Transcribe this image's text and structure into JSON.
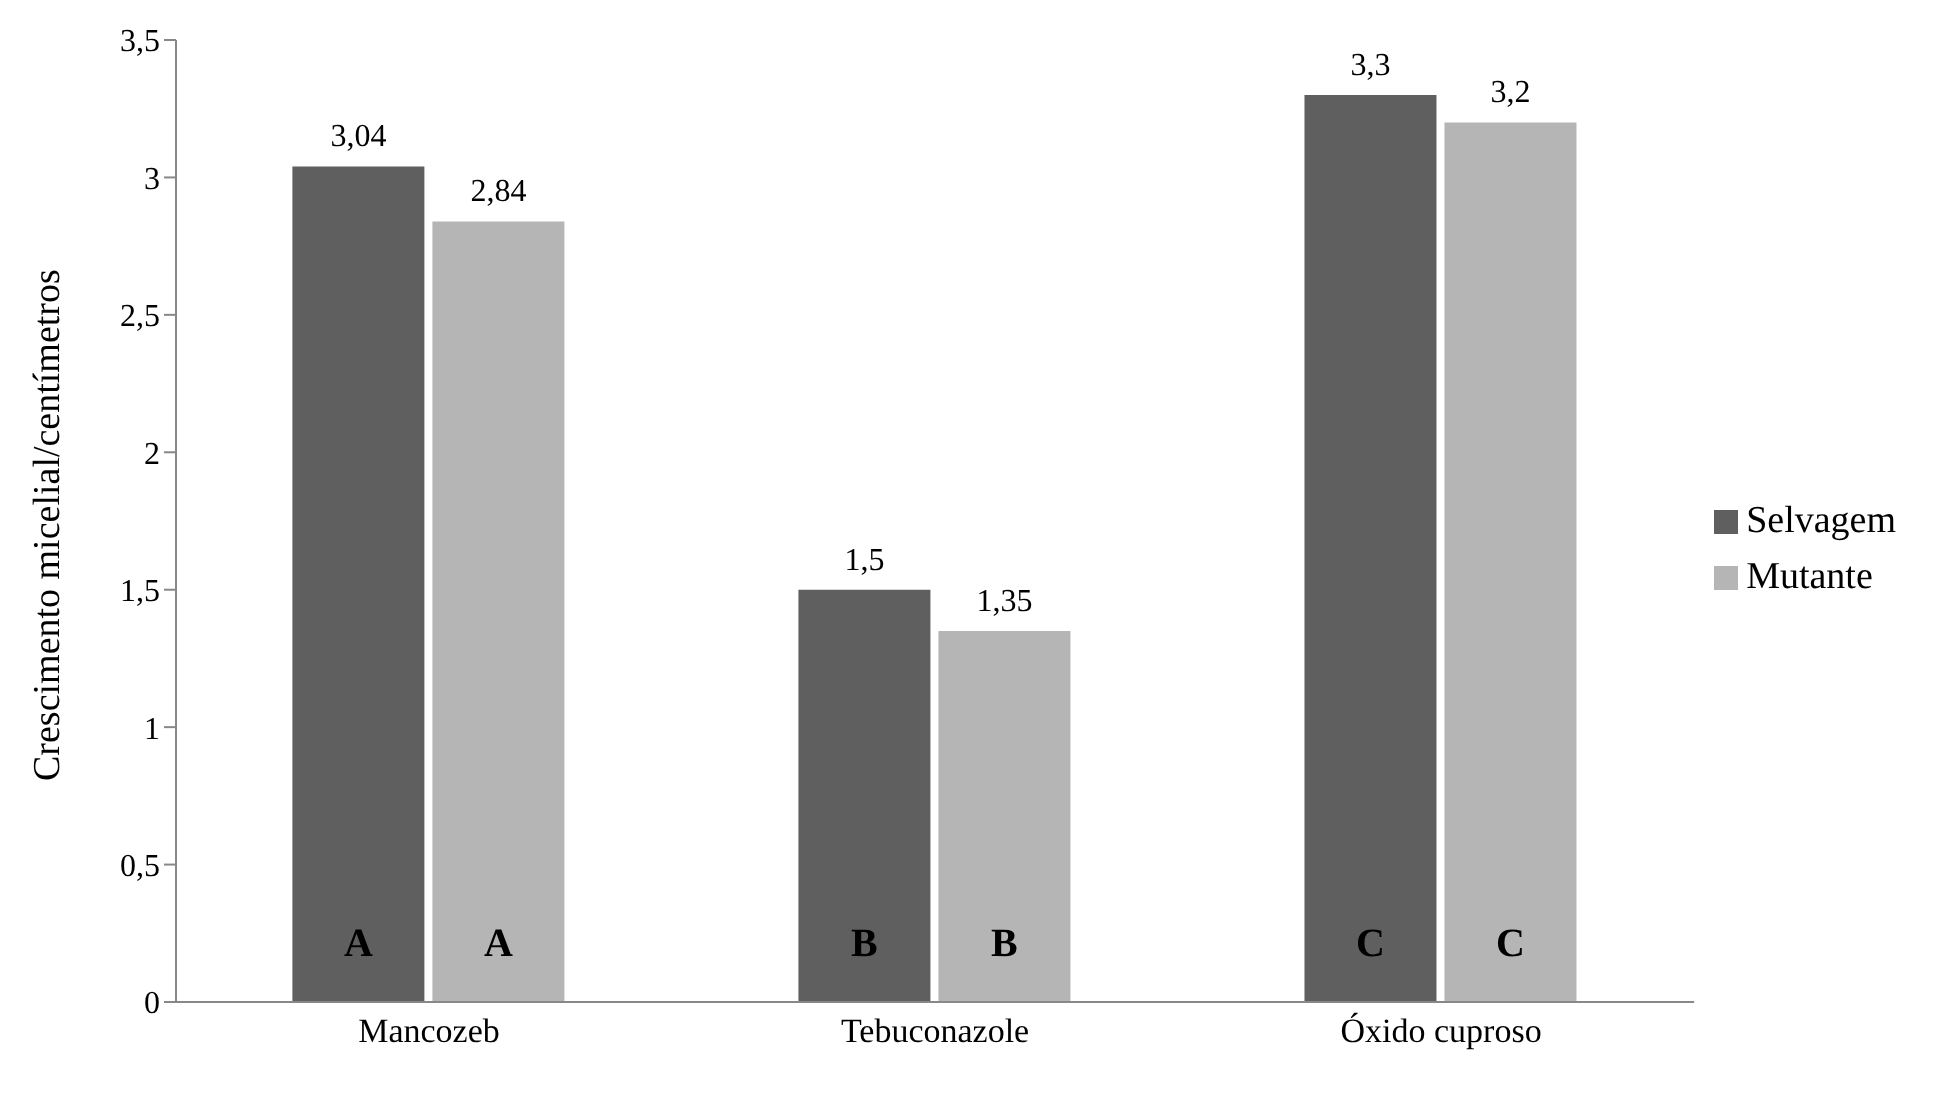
{
  "chart_data": {
    "type": "bar",
    "ylabel": "Crescimento micelial/centímetros",
    "categories": [
      "Mancozeb",
      "Tebuconazole",
      "Óxido cuproso"
    ],
    "series": [
      {
        "name": "Selvagem",
        "color": "#5f5f5f",
        "values": [
          3.04,
          1.5,
          3.3
        ],
        "value_labels": [
          "3,04",
          "1,5",
          "3,3"
        ]
      },
      {
        "name": "Mutante",
        "color": "#b5b5b5",
        "values": [
          2.84,
          1.35,
          3.2
        ],
        "value_labels": [
          "2,84",
          "1,35",
          "3,2"
        ]
      }
    ],
    "ylim": [
      0,
      3.5
    ],
    "yticks": [
      0,
      {
        "value": 0.5,
        "label": "0,5"
      },
      1,
      {
        "value": 1.5,
        "label": "1,5"
      },
      2,
      {
        "value": 2.5,
        "label": "2,5"
      },
      3,
      {
        "value": 3.5,
        "label": "3,5"
      }
    ],
    "grid": false,
    "legend": "right",
    "annotations": [
      {
        "text": "A",
        "x": "Mancozeb",
        "y": 0.2
      },
      {
        "text": "A",
        "x": "Mancozeb",
        "y": 0.2
      },
      {
        "text": "B",
        "x": "Tebuconazole",
        "y": 0.2
      },
      {
        "text": "B",
        "x": "Tebuconazole",
        "y": 0.2
      },
      {
        "text": "C",
        "x": "Óxido cuproso",
        "y": 0.2
      },
      {
        "text": "C",
        "x": "Óxido cuproso",
        "y": 0.2
      }
    ]
  }
}
